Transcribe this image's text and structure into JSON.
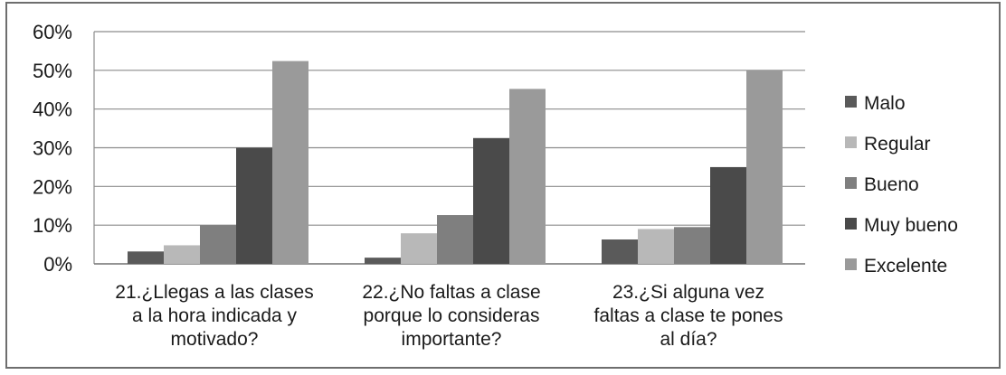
{
  "chart_data": {
    "type": "bar",
    "categories": [
      [
        "21.¿Llegas a las clases",
        "a la hora indicada y",
        "motivado?"
      ],
      [
        "22.¿No faltas a clase",
        "porque lo consideras",
        "importante?"
      ],
      [
        "23.¿Si alguna vez",
        "faltas a clase te pones",
        "al día?"
      ]
    ],
    "series": [
      {
        "name": "Malo",
        "color": "#5a5a5a",
        "values": [
          3.2,
          1.6,
          6.3
        ]
      },
      {
        "name": "Regular",
        "color": "#b8b8b8",
        "values": [
          4.8,
          7.9,
          9.0
        ]
      },
      {
        "name": "Bueno",
        "color": "#7f7f7f",
        "values": [
          10.0,
          12.6,
          9.5
        ]
      },
      {
        "name": "Muy bueno",
        "color": "#4a4a4a",
        "values": [
          30.0,
          32.5,
          25.0
        ]
      },
      {
        "name": "Excelente",
        "color": "#9a9a9a",
        "values": [
          52.4,
          45.2,
          50.0
        ]
      }
    ],
    "y_ticks": [
      "0%",
      "10%",
      "20%",
      "30%",
      "40%",
      "50%",
      "60%"
    ],
    "ylim": [
      0,
      60
    ],
    "grid": true,
    "legend_position": "right"
  }
}
